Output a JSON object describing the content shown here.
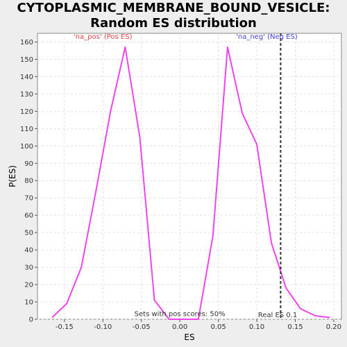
{
  "chart_data": {
    "type": "line",
    "title": "CYTOPLASMIC_MEMBRANE_BOUND_VESICLE: Random ES distribution",
    "xlabel": "ES",
    "ylabel": "P(ES)",
    "xlim": [
      -0.185,
      0.21
    ],
    "ylim": [
      0,
      165
    ],
    "xticks": [
      -0.15,
      -0.1,
      -0.05,
      0.0,
      0.05,
      0.1,
      0.15,
      0.2
    ],
    "xtick_labels": [
      "-0.15",
      "-0.10",
      "-0.05",
      "0.00",
      "0.05",
      "0.10",
      "0.15",
      "0.20"
    ],
    "yticks": [
      0,
      10,
      20,
      30,
      40,
      50,
      60,
      70,
      80,
      90,
      100,
      110,
      120,
      130,
      140,
      150,
      160
    ],
    "ytick_labels": [
      "0",
      "10",
      "20",
      "30",
      "40",
      "50",
      "60",
      "70",
      "80",
      "90",
      "100",
      "110",
      "120",
      "130",
      "140",
      "150",
      "160"
    ],
    "grid": true,
    "series": [
      {
        "color": "#ee44ee",
        "x": [
          -0.166,
          -0.147,
          -0.128,
          -0.109,
          -0.09,
          -0.071,
          -0.052,
          -0.033,
          -0.014,
          0.005,
          0.024,
          0.043,
          0.062,
          0.081,
          0.1,
          0.119,
          0.138,
          0.157,
          0.176,
          0.195
        ],
        "y": [
          1,
          9,
          30,
          74,
          120,
          157,
          105,
          11,
          0,
          0,
          0,
          48,
          157,
          119,
          101,
          44,
          18,
          6,
          2,
          1
        ]
      }
    ],
    "annotations": [
      {
        "text": "'na_pos' (Pos ES)",
        "x": -0.1,
        "y": 161,
        "color": "#dd4444"
      },
      {
        "text": "'na_neg' (Neg ES)",
        "x": 0.113,
        "y": 161,
        "color": "#4444dd"
      },
      {
        "text": "Sets with pos scores: 50%",
        "x": 0.0,
        "y": 1,
        "color": "#333333"
      },
      {
        "text": "Real ES 0.1",
        "x": 0.127,
        "y": 0.5,
        "color": "#333333"
      }
    ],
    "real_es": 0.131
  }
}
